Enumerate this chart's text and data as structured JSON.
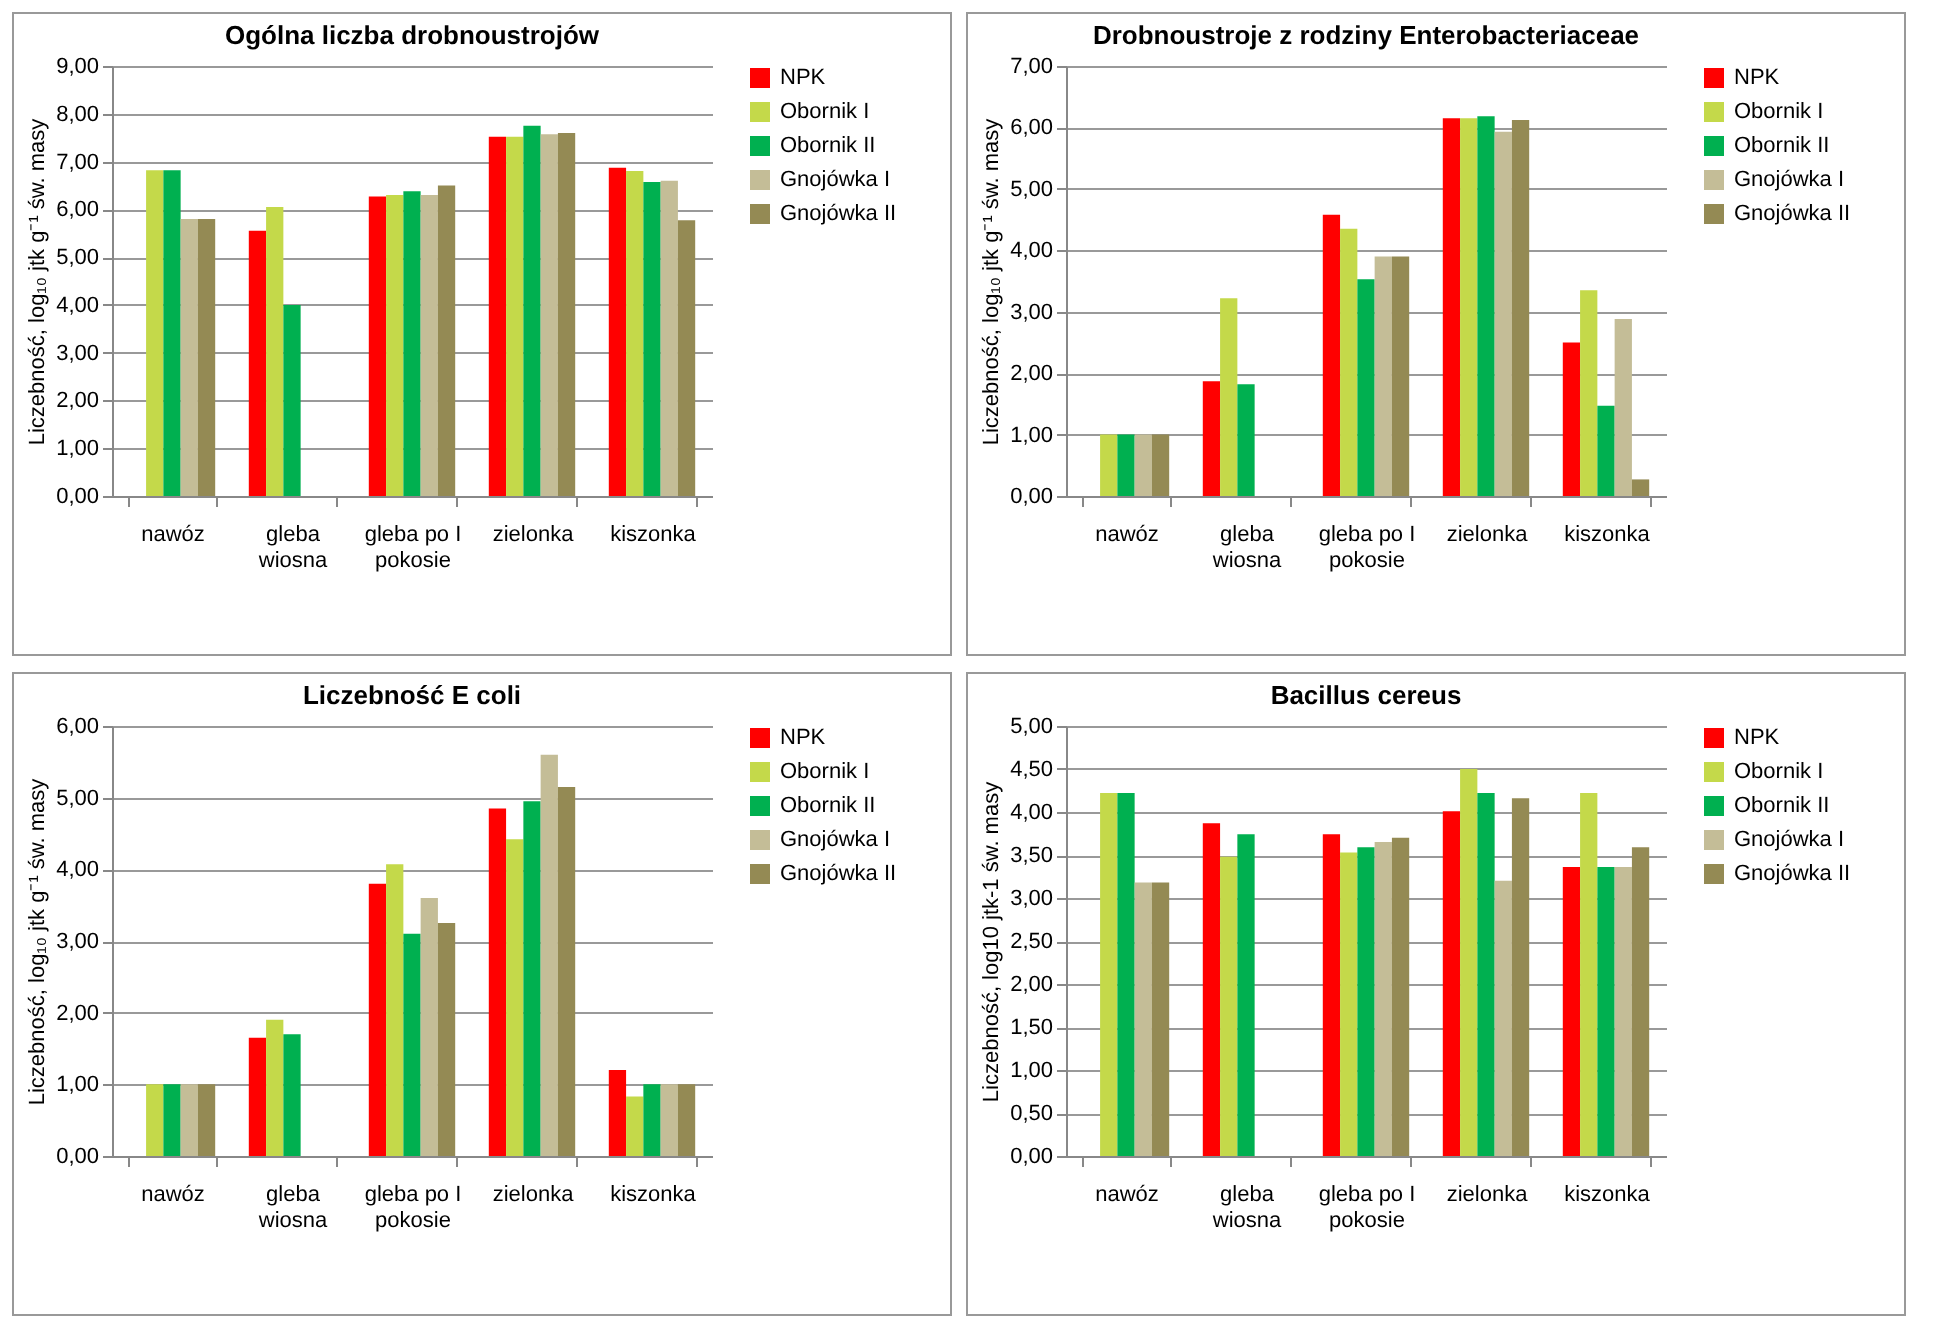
{
  "chart_data": [
    {
      "type": "bar",
      "title": "Ogólna liczba drobnoustrojów",
      "ylabel": "Liczebność, log₁₀ jtk g⁻¹ św. masy",
      "categories": [
        "nawóz",
        "gleba wiosna",
        "gleba po I pokosie",
        "zielonka",
        "kiszonka"
      ],
      "ylim": [
        0,
        9
      ],
      "yticks": [
        {
          "value": 0,
          "label": "0,00"
        },
        {
          "value": 1,
          "label": "1,00"
        },
        {
          "value": 2,
          "label": "2,00"
        },
        {
          "value": 3,
          "label": "3,00"
        },
        {
          "value": 4,
          "label": "4,00"
        },
        {
          "value": 5,
          "label": "5,00"
        },
        {
          "value": 6,
          "label": "6,00"
        },
        {
          "value": 7,
          "label": "7,00"
        },
        {
          "value": 8,
          "label": "8,00"
        },
        {
          "value": 9,
          "label": "9,00"
        }
      ],
      "grid": "y",
      "legend": "right",
      "series": [
        {
          "name": "NPK",
          "color": "#ff0000",
          "values": [
            null,
            5.55,
            6.27,
            7.52,
            6.87
          ]
        },
        {
          "name": "Obornik I",
          "color": "#c4d94a",
          "values": [
            6.82,
            6.05,
            6.3,
            7.52,
            6.8
          ]
        },
        {
          "name": "Obornik II",
          "color": "#00b050",
          "values": [
            6.82,
            4.0,
            6.38,
            7.75,
            6.57
          ]
        },
        {
          "name": "Gnojówka I",
          "color": "#c4bd97",
          "values": [
            5.8,
            null,
            6.3,
            7.57,
            6.6
          ]
        },
        {
          "name": "Gnojówka II",
          "color": "#948a54",
          "values": [
            5.8,
            null,
            6.5,
            7.6,
            5.77
          ]
        }
      ]
    },
    {
      "type": "bar",
      "title": "Drobnoustroje z rodziny Enterobacteriaceae",
      "ylabel": "Liczebność, log₁₀ jtk g⁻¹ św. masy",
      "categories": [
        "nawóz",
        "gleba wiosna",
        "gleba po I pokosie",
        "zielonka",
        "kiszonka"
      ],
      "ylim": [
        0,
        7
      ],
      "yticks": [
        {
          "value": 0,
          "label": "0,00"
        },
        {
          "value": 1,
          "label": "1,00"
        },
        {
          "value": 2,
          "label": "2,00"
        },
        {
          "value": 3,
          "label": "3,00"
        },
        {
          "value": 4,
          "label": "4,00"
        },
        {
          "value": 5,
          "label": "5,00"
        },
        {
          "value": 6,
          "label": "6,00"
        },
        {
          "value": 7,
          "label": "7,00"
        }
      ],
      "grid": "y",
      "legend": "right",
      "series": [
        {
          "name": "NPK",
          "color": "#ff0000",
          "values": [
            null,
            1.87,
            4.58,
            6.15,
            2.5
          ]
        },
        {
          "name": "Obornik I",
          "color": "#c4d94a",
          "values": [
            1.0,
            3.22,
            4.35,
            6.15,
            3.35
          ]
        },
        {
          "name": "Obornik II",
          "color": "#00b050",
          "values": [
            1.0,
            1.82,
            3.53,
            6.18,
            1.47
          ]
        },
        {
          "name": "Gnojówka I",
          "color": "#c4bd97",
          "values": [
            1.0,
            null,
            3.9,
            5.93,
            2.88
          ]
        },
        {
          "name": "Gnojówka II",
          "color": "#948a54",
          "values": [
            1.0,
            null,
            3.9,
            6.12,
            0.27
          ]
        }
      ]
    },
    {
      "type": "bar",
      "title": "Liczebność E coli",
      "ylabel": "Liczebność, log₁₀ jtk g⁻¹ św. masy",
      "categories": [
        "nawóz",
        "gleba wiosna",
        "gleba po I pokosie",
        "zielonka",
        "kiszonka"
      ],
      "ylim": [
        0,
        6
      ],
      "yticks": [
        {
          "value": 0,
          "label": "0,00"
        },
        {
          "value": 1,
          "label": "1,00"
        },
        {
          "value": 2,
          "label": "2,00"
        },
        {
          "value": 3,
          "label": "3,00"
        },
        {
          "value": 4,
          "label": "4,00"
        },
        {
          "value": 5,
          "label": "5,00"
        },
        {
          "value": 6,
          "label": "6,00"
        }
      ],
      "grid": "y",
      "legend": "right",
      "series": [
        {
          "name": "NPK",
          "color": "#ff0000",
          "values": [
            null,
            1.65,
            3.8,
            4.85,
            1.2
          ]
        },
        {
          "name": "Obornik I",
          "color": "#c4d94a",
          "values": [
            1.0,
            1.9,
            4.07,
            4.42,
            0.83
          ]
        },
        {
          "name": "Obornik II",
          "color": "#00b050",
          "values": [
            1.0,
            1.7,
            3.1,
            4.95,
            1.0
          ]
        },
        {
          "name": "Gnojówka I",
          "color": "#c4bd97",
          "values": [
            1.0,
            null,
            3.6,
            5.6,
            1.0
          ]
        },
        {
          "name": "Gnojówka II",
          "color": "#948a54",
          "values": [
            1.0,
            null,
            3.25,
            5.15,
            1.0
          ]
        }
      ]
    },
    {
      "type": "bar",
      "title": "Bacillus cereus",
      "ylabel": "Liczebność, log10 jtk-1 św. masy",
      "categories": [
        "nawóz",
        "gleba wiosna",
        "gleba po I pokosie",
        "zielonka",
        "kiszonka"
      ],
      "ylim": [
        0,
        5
      ],
      "yticks": [
        {
          "value": 0,
          "label": "0,00"
        },
        {
          "value": 0.5,
          "label": "0,50"
        },
        {
          "value": 1,
          "label": "1,00"
        },
        {
          "value": 1.5,
          "label": "1,50"
        },
        {
          "value": 2,
          "label": "2,00"
        },
        {
          "value": 2.5,
          "label": "2,50"
        },
        {
          "value": 3,
          "label": "3,00"
        },
        {
          "value": 3.5,
          "label": "3,50"
        },
        {
          "value": 4,
          "label": "4,00"
        },
        {
          "value": 4.5,
          "label": "4,50"
        },
        {
          "value": 5,
          "label": "5,00"
        }
      ],
      "grid": "y",
      "legend": "right",
      "series": [
        {
          "name": "NPK",
          "color": "#ff0000",
          "values": [
            null,
            3.87,
            3.74,
            4.01,
            3.36
          ]
        },
        {
          "name": "Obornik I",
          "color": "#c4d94a",
          "values": [
            4.22,
            3.48,
            3.53,
            4.5,
            4.22
          ]
        },
        {
          "name": "Obornik II",
          "color": "#00b050",
          "values": [
            4.22,
            3.74,
            3.59,
            4.22,
            3.36
          ]
        },
        {
          "name": "Gnojówka I",
          "color": "#c4bd97",
          "values": [
            3.18,
            null,
            3.65,
            3.2,
            3.36
          ]
        },
        {
          "name": "Gnojówka II",
          "color": "#948a54",
          "values": [
            3.18,
            null,
            3.7,
            4.16,
            3.59
          ]
        }
      ]
    }
  ]
}
